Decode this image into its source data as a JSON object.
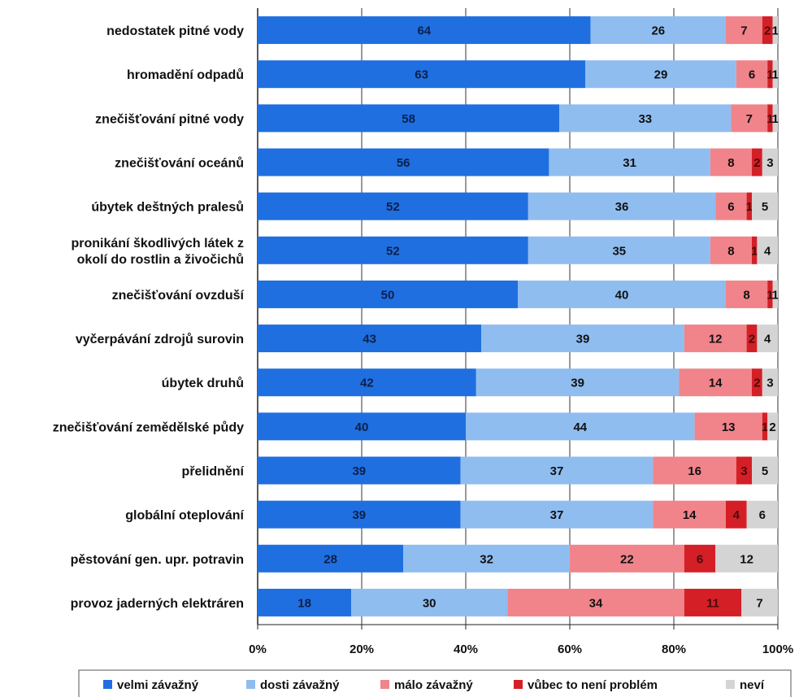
{
  "chart_data": {
    "type": "bar",
    "orientation": "horizontal",
    "stacked": "percent",
    "title": "",
    "xlabel": "",
    "ylabel": "",
    "xlim": [
      0,
      100
    ],
    "x_ticks": [
      "0%",
      "20%",
      "40%",
      "60%",
      "80%",
      "100%"
    ],
    "grid": "vertical",
    "legend_position": "bottom",
    "categories": [
      [
        "nedostatek pitné vody"
      ],
      [
        "hromadění odpadů"
      ],
      [
        "znečišťování pitné vody"
      ],
      [
        "znečišťování oceánů"
      ],
      [
        "úbytek deštných pralesů"
      ],
      [
        "pronikání škodlivých látek z",
        "okolí do rostlin a živočichů"
      ],
      [
        "znečišťování ovzduší"
      ],
      [
        "vyčerpávání zdrojů surovin"
      ],
      [
        "úbytek druhů"
      ],
      [
        "znečišťování zemědělské půdy"
      ],
      [
        "přelidnění"
      ],
      [
        "globální oteplování"
      ],
      [
        "pěstování gen. upr. potravin"
      ],
      [
        "provoz jaderných elektráren"
      ]
    ],
    "series": [
      {
        "name": "velmi závažný",
        "color": "#1f6fe0",
        "label_color": "#0d1f4a",
        "values": [
          64,
          63,
          58,
          56,
          52,
          52,
          50,
          43,
          42,
          40,
          39,
          39,
          28,
          18
        ]
      },
      {
        "name": "dosti závažný",
        "color": "#8fbdf0",
        "label_color": "#111111",
        "values": [
          26,
          29,
          33,
          31,
          36,
          35,
          40,
          39,
          39,
          44,
          37,
          37,
          32,
          30
        ]
      },
      {
        "name": "málo závažný",
        "color": "#f0848a",
        "label_color": "#111111",
        "values": [
          7,
          6,
          7,
          8,
          6,
          8,
          8,
          12,
          14,
          13,
          16,
          14,
          22,
          34
        ]
      },
      {
        "name": "vůbec to není problém",
        "color": "#d41f26",
        "label_color": "#4a0a0a",
        "values": [
          2,
          1,
          1,
          2,
          1,
          1,
          1,
          2,
          2,
          1,
          3,
          4,
          6,
          11
        ]
      },
      {
        "name": "neví",
        "color": "#d4d4d4",
        "label_color": "#111111",
        "values": [
          1,
          1,
          1,
          3,
          5,
          4,
          1,
          4,
          3,
          2,
          5,
          6,
          12,
          7
        ]
      }
    ]
  }
}
